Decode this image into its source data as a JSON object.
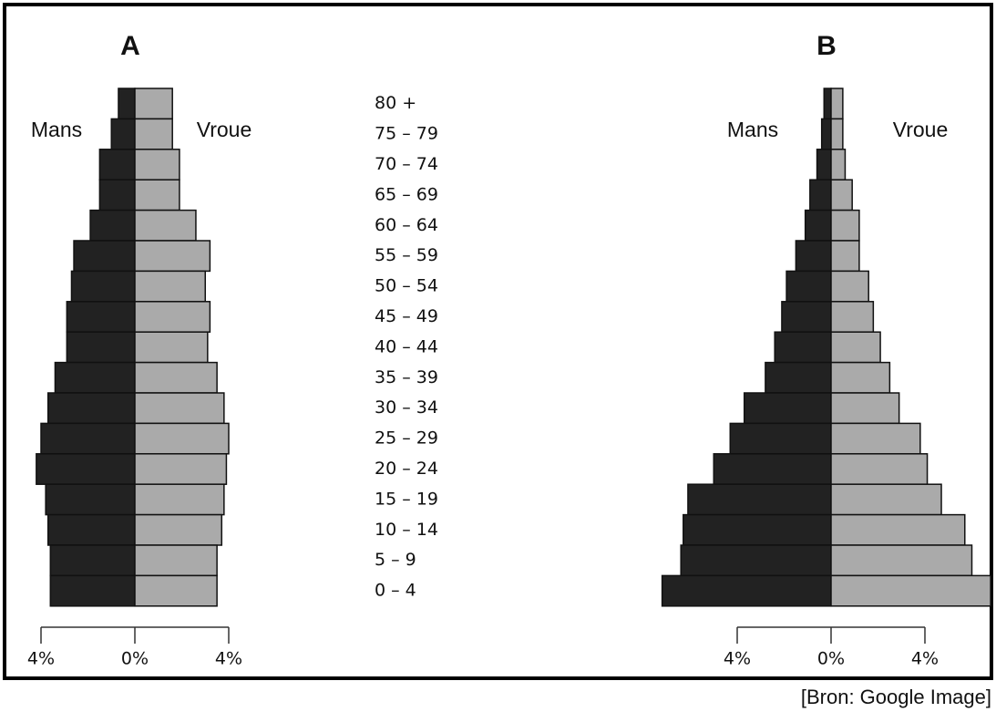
{
  "chart_data": [
    {
      "type": "pyramid",
      "title": "A",
      "categories": [
        "80 +",
        "75 – 79",
        "70 – 74",
        "65 – 69",
        "60 – 64",
        "55 – 59",
        "50 – 54",
        "45 – 49",
        "40 – 44",
        "35 – 39",
        "30 – 34",
        "25 – 29",
        "20 – 24",
        "15 – 19",
        "10 – 14",
        "5 – 9",
        "0 – 4"
      ],
      "series": [
        {
          "name": "Mans",
          "color": "#222222",
          "values": [
            -0.7,
            -1.0,
            -1.5,
            -1.5,
            -1.9,
            -2.6,
            -2.7,
            -2.9,
            -2.9,
            -3.4,
            -3.7,
            -4.0,
            -4.2,
            -3.8,
            -3.7,
            -3.6,
            -3.6
          ]
        },
        {
          "name": "Vroue",
          "color": "#aaaaaa",
          "values": [
            1.6,
            1.6,
            1.9,
            1.9,
            2.6,
            3.2,
            3.0,
            3.2,
            3.1,
            3.5,
            3.8,
            4.0,
            3.9,
            3.8,
            3.7,
            3.5,
            3.5
          ]
        }
      ],
      "xlim": [
        -4,
        4
      ],
      "xticks": [
        {
          "value": -4,
          "label": "4%"
        },
        {
          "value": 0,
          "label": "0%"
        },
        {
          "value": 4,
          "label": "4%"
        }
      ]
    },
    {
      "type": "pyramid",
      "title": "B",
      "series": [
        {
          "name": "Mans",
          "color": "#222222",
          "values": [
            -0.3,
            -0.4,
            -0.6,
            -0.9,
            -1.1,
            -1.5,
            -1.9,
            -2.1,
            -2.4,
            -2.8,
            -3.7,
            -4.3,
            -5.0,
            -6.1,
            -6.3,
            -6.4,
            -7.2
          ]
        },
        {
          "name": "Vroue",
          "color": "#aaaaaa",
          "values": [
            0.5,
            0.5,
            0.6,
            0.9,
            1.2,
            1.2,
            1.6,
            1.8,
            2.1,
            2.5,
            2.9,
            3.8,
            4.1,
            4.7,
            5.7,
            6.0,
            6.8
          ]
        }
      ],
      "xlim": [
        -4,
        4
      ],
      "xticks": [
        {
          "value": -4,
          "label": "4%"
        },
        {
          "value": 0,
          "label": "0%"
        },
        {
          "value": 4,
          "label": "4%"
        }
      ]
    }
  ],
  "caption": "[Bron:  Google Image]"
}
